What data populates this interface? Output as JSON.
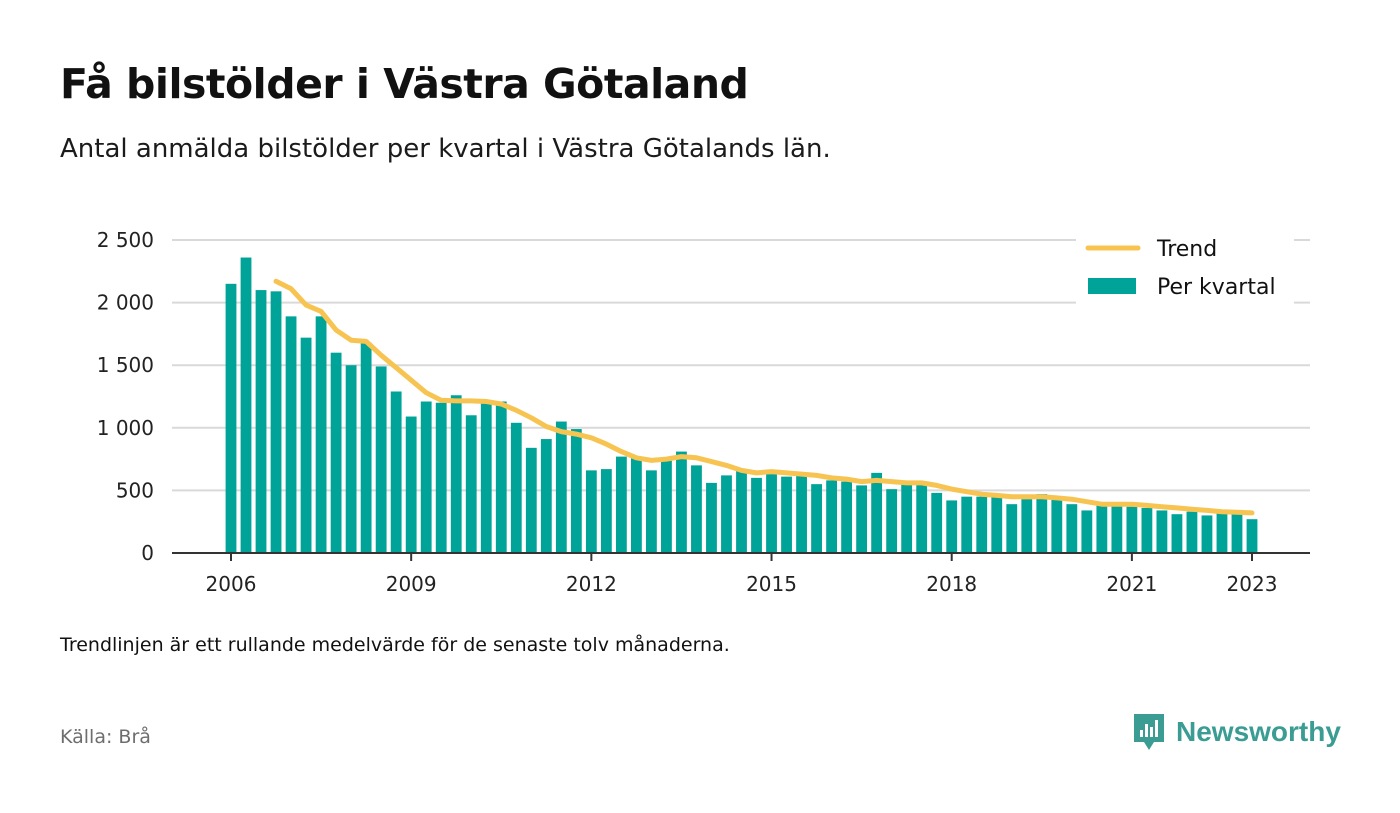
{
  "header": {
    "title": "Få bilstölder i Västra Götaland",
    "subtitle": "Antal anmälda bilstölder per kvartal i Västra Götalands län."
  },
  "footer": {
    "note": "Trendlinjen är ett rullande medelvärde för de senaste tolv månaderna.",
    "source": "Källa: Brå",
    "brand": "Newsworthy"
  },
  "colors": {
    "bars": "#00a398",
    "trend": "#f7c452",
    "grid": "#d9d9d9",
    "axis": "#333333",
    "brand": "#3a9c93"
  },
  "chart_data": {
    "type": "bar",
    "title": "Få bilstölder i Västra Götaland",
    "subtitle": "Antal anmälda bilstölder per kvartal i Västra Götalands län.",
    "ylim": [
      0,
      2500
    ],
    "yticks": [
      {
        "value": 0,
        "label": "0"
      },
      {
        "value": 500,
        "label": "500"
      },
      {
        "value": 1000,
        "label": "1 000"
      },
      {
        "value": 1500,
        "label": "1 500"
      },
      {
        "value": 2000,
        "label": "2 000"
      },
      {
        "value": 2500,
        "label": "2 500"
      }
    ],
    "xticks": [
      "2006",
      "2009",
      "2012",
      "2015",
      "2018",
      "2021",
      "2023"
    ],
    "xrange": [
      "2006 Q1",
      "2023 Q1"
    ],
    "grid": true,
    "legend_position": "top-right",
    "legend": [
      "Trend",
      "Per kvartal"
    ],
    "categories": [
      "2006 Q1",
      "2006 Q2",
      "2006 Q3",
      "2006 Q4",
      "2007 Q1",
      "2007 Q2",
      "2007 Q3",
      "2007 Q4",
      "2008 Q1",
      "2008 Q2",
      "2008 Q3",
      "2008 Q4",
      "2009 Q1",
      "2009 Q2",
      "2009 Q3",
      "2009 Q4",
      "2010 Q1",
      "2010 Q2",
      "2010 Q3",
      "2010 Q4",
      "2011 Q1",
      "2011 Q2",
      "2011 Q3",
      "2011 Q4",
      "2012 Q1",
      "2012 Q2",
      "2012 Q3",
      "2012 Q4",
      "2013 Q1",
      "2013 Q2",
      "2013 Q3",
      "2013 Q4",
      "2014 Q1",
      "2014 Q2",
      "2014 Q3",
      "2014 Q4",
      "2015 Q1",
      "2015 Q2",
      "2015 Q3",
      "2015 Q4",
      "2016 Q1",
      "2016 Q2",
      "2016 Q3",
      "2016 Q4",
      "2017 Q1",
      "2017 Q2",
      "2017 Q3",
      "2017 Q4",
      "2018 Q1",
      "2018 Q2",
      "2018 Q3",
      "2018 Q4",
      "2019 Q1",
      "2019 Q2",
      "2019 Q3",
      "2019 Q4",
      "2020 Q1",
      "2020 Q2",
      "2020 Q3",
      "2020 Q4",
      "2021 Q1",
      "2021 Q2",
      "2021 Q3",
      "2021 Q4",
      "2022 Q1",
      "2022 Q2",
      "2022 Q3",
      "2022 Q4",
      "2023 Q1"
    ],
    "series": [
      {
        "name": "Per kvartal",
        "type": "bar",
        "values": [
          2150,
          2360,
          2100,
          2090,
          1890,
          1720,
          1890,
          1600,
          1500,
          1680,
          1490,
          1290,
          1090,
          1210,
          1200,
          1260,
          1100,
          1200,
          1210,
          1040,
          840,
          910,
          1050,
          990,
          660,
          670,
          770,
          770,
          660,
          760,
          810,
          700,
          560,
          620,
          660,
          600,
          630,
          610,
          620,
          550,
          580,
          570,
          540,
          640,
          510,
          550,
          560,
          480,
          420,
          450,
          450,
          450,
          390,
          430,
          470,
          440,
          390,
          340,
          390,
          380,
          370,
          360,
          340,
          310,
          330,
          300,
          320,
          310,
          270
        ]
      },
      {
        "name": "Trend",
        "type": "line",
        "values": [
          null,
          null,
          null,
          2170,
          2110,
          1980,
          1930,
          1780,
          1700,
          1690,
          1580,
          1480,
          1380,
          1280,
          1220,
          1215,
          1215,
          1210,
          1190,
          1140,
          1080,
          1010,
          970,
          950,
          920,
          870,
          810,
          760,
          740,
          750,
          770,
          760,
          730,
          700,
          660,
          640,
          650,
          640,
          630,
          620,
          600,
          590,
          570,
          580,
          570,
          560,
          560,
          540,
          510,
          490,
          470,
          460,
          450,
          450,
          450,
          440,
          430,
          410,
          390,
          390,
          390,
          380,
          370,
          360,
          350,
          340,
          330,
          325,
          320
        ]
      }
    ]
  }
}
